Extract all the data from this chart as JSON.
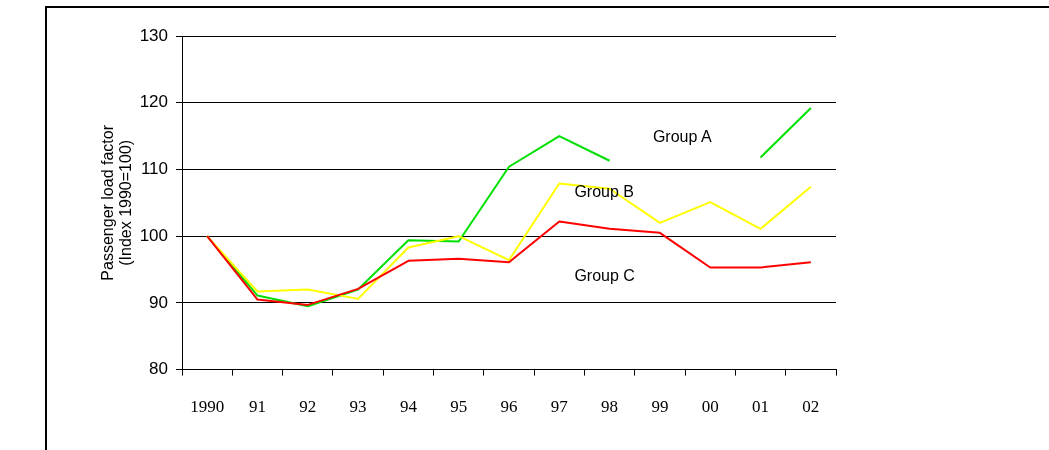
{
  "chart_data": {
    "type": "line",
    "ylabel": "Passenger load factor\n(Index 1990=100)",
    "categories": [
      "1990",
      "91",
      "92",
      "93",
      "94",
      "95",
      "96",
      "97",
      "98",
      "99",
      "00",
      "01",
      "02"
    ],
    "series": [
      {
        "name": "Group A",
        "color": "#00e000",
        "values": [
          100,
          91.1,
          89.5,
          92.0,
          99.4,
          99.2,
          110.4,
          115.0,
          111.3,
          null,
          null,
          111.8,
          119.2
        ]
      },
      {
        "name": "Group B",
        "color": "#ffff00",
        "values": [
          100,
          91.7,
          92.0,
          90.6,
          98.3,
          100,
          96.4,
          107.9,
          107.1,
          102.0,
          105.1,
          101.1,
          107.4
        ]
      },
      {
        "name": "Group C",
        "color": "#ff0000",
        "values": [
          100,
          90.5,
          89.7,
          92.1,
          96.3,
          96.6,
          96.1,
          102.2,
          101.1,
          100.5,
          95.3,
          95.3,
          96.1
        ]
      }
    ],
    "ylim": [
      80,
      130
    ],
    "yticks": [
      80,
      90,
      100,
      110,
      120,
      130
    ],
    "grid": "y",
    "legend": false,
    "marker": "none",
    "line_style": "solid"
  }
}
